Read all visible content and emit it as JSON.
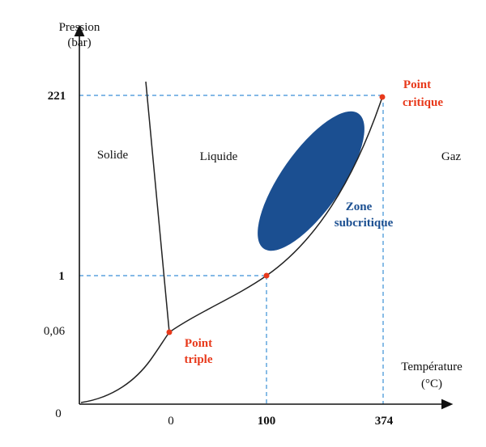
{
  "axes": {
    "y_label_line1": "Pression",
    "y_label_line2": "(bar)",
    "x_label_line1": "Température",
    "x_label_line2": "(°C)",
    "origin_label": "0"
  },
  "y_ticks": [
    {
      "value_label": "221",
      "bold": true
    },
    {
      "value_label": "1",
      "bold": true
    },
    {
      "value_label": "0,06",
      "bold": false
    }
  ],
  "x_ticks": [
    {
      "value_label": "0",
      "bold": false
    },
    {
      "value_label": "100",
      "bold": true
    },
    {
      "value_label": "374",
      "bold": true
    }
  ],
  "regions": {
    "solid": "Solide",
    "liquid": "Liquide",
    "gas": "Gaz"
  },
  "points": {
    "triple_line1": "Point",
    "triple_line2": "triple",
    "critical_line1": "Point",
    "critical_line2": "critique"
  },
  "zone": {
    "line1": "Zone",
    "line2": "subcritique"
  },
  "colors": {
    "axis": "#111111",
    "curve": "#222222",
    "guide": "#3a8fd6",
    "point": "#e8391b",
    "zone": "#1b4f91"
  }
}
